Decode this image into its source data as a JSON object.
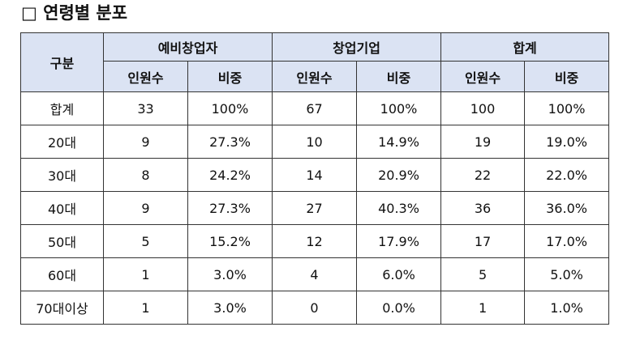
{
  "header": {
    "title": "□ 연령별 분포"
  },
  "table": {
    "corner": "구분",
    "groups": [
      "예비창업자",
      "창업기업",
      "합계"
    ],
    "subheaders": [
      "인원수",
      "비중",
      "인원수",
      "비중",
      "인원수",
      "비중"
    ],
    "rows": [
      [
        "합계",
        "33",
        "100%",
        "67",
        "100%",
        "100",
        "100%"
      ],
      [
        "20대",
        "9",
        "27.3%",
        "10",
        "14.9%",
        "19",
        "19.0%"
      ],
      [
        "30대",
        "8",
        "24.2%",
        "14",
        "20.9%",
        "22",
        "22.0%"
      ],
      [
        "40대",
        "9",
        "27.3%",
        "27",
        "40.3%",
        "36",
        "36.0%"
      ],
      [
        "50대",
        "5",
        "15.2%",
        "12",
        "17.9%",
        "17",
        "17.0%"
      ],
      [
        "60대",
        "1",
        "3.0%",
        "4",
        "6.0%",
        "5",
        "5.0%"
      ],
      [
        "70대이상",
        "1",
        "3.0%",
        "0",
        "0.0%",
        "1",
        "1.0%"
      ]
    ]
  }
}
